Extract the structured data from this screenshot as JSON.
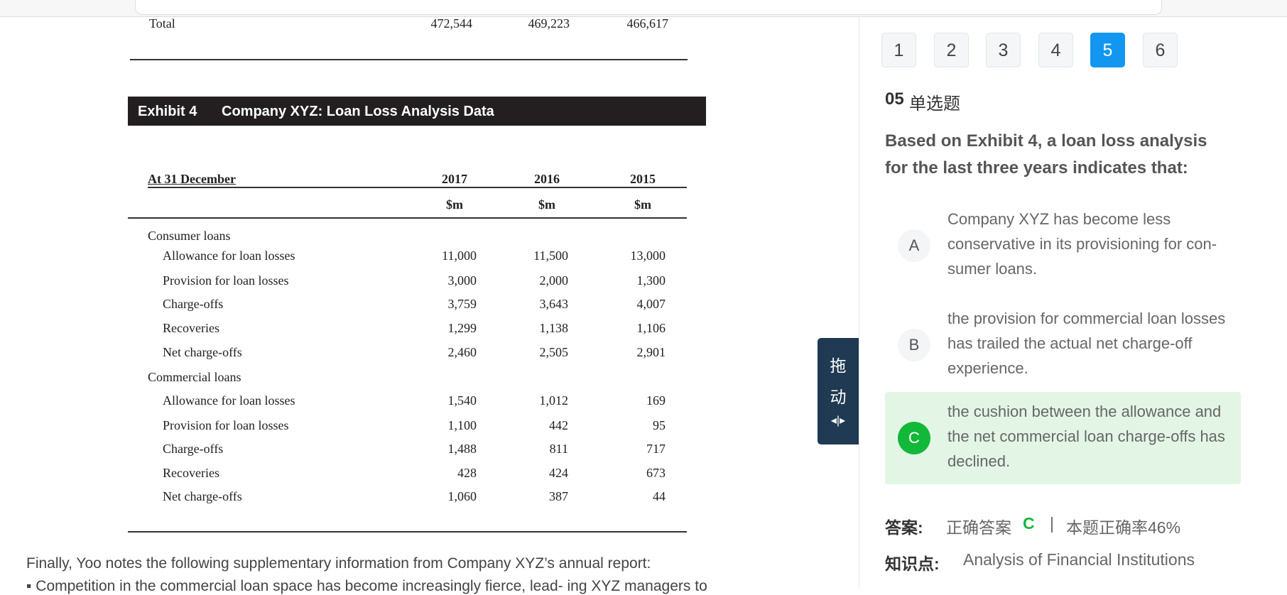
{
  "total_row": {
    "label": "Total",
    "values": [
      "472,544",
      "469,223",
      "466,617"
    ]
  },
  "exhibit": {
    "number": "Exhibit 4",
    "title": "Company XYZ: Loan Loss Analysis Data"
  },
  "table": {
    "header": "At 31 December",
    "years": [
      "2017",
      "2016",
      "2015"
    ],
    "units": [
      "$m",
      "$m",
      "$m"
    ],
    "sections": [
      {
        "name": "Consumer loans",
        "rows": [
          {
            "label": "Allowance for loan losses",
            "values": [
              "11,000",
              "11,500",
              "13,000"
            ]
          },
          {
            "label": "Provision for loan losses",
            "values": [
              "3,000",
              "2,000",
              "1,300"
            ]
          },
          {
            "label": "Charge-offs",
            "values": [
              "3,759",
              "3,643",
              "4,007"
            ]
          },
          {
            "label": "Recoveries",
            "values": [
              "1,299",
              "1,138",
              "1,106"
            ]
          },
          {
            "label": "Net charge-offs",
            "values": [
              "2,460",
              "2,505",
              "2,901"
            ]
          }
        ]
      },
      {
        "name": "Commercial loans",
        "rows": [
          {
            "label": "Allowance for loan losses",
            "values": [
              "1,540",
              "1,012",
              "169"
            ]
          },
          {
            "label": "Provision for loan losses",
            "values": [
              "1,100",
              "442",
              "95"
            ]
          },
          {
            "label": "Charge-offs",
            "values": [
              "1,488",
              "811",
              "717"
            ]
          },
          {
            "label": "Recoveries",
            "values": [
              "428",
              "424",
              "673"
            ]
          },
          {
            "label": "Net charge-offs",
            "values": [
              "1,060",
              "387",
              "44"
            ]
          }
        ]
      }
    ]
  },
  "paragraph": "Finally, Yoo notes the following supplementary information from Company XYZ’s annual report:",
  "bullet": "Competition in the commercial loan space has become increasingly fierce, lead- ing XYZ managers to",
  "drag": [
    "拖",
    "动"
  ],
  "pager": {
    "pages": [
      "1",
      "2",
      "3",
      "4",
      "5",
      "6"
    ],
    "active": 4
  },
  "question": {
    "number": "05",
    "type": "单选题",
    "stem": "Based on Exhibit 4, a loan loss analysis for the last three years indicates that:",
    "options": [
      {
        "letter": "A",
        "text": "Company XYZ has become less conservative in its provisioning for con-sumer loans."
      },
      {
        "letter": "B",
        "text": "the provision for commercial loan losses has trailed the actual net charge-off experience."
      },
      {
        "letter": "C",
        "text": "the cushion between the allowance and the net commercial loan charge-offs has declined."
      }
    ],
    "correct": 2
  },
  "answer": {
    "label": "答案:",
    "text": "正确答案",
    "letter": "C",
    "separator": "|",
    "rate": "本题正确率46%"
  },
  "knowledge": {
    "label": "知识点:",
    "text": "Analysis of Financial Institutions"
  }
}
